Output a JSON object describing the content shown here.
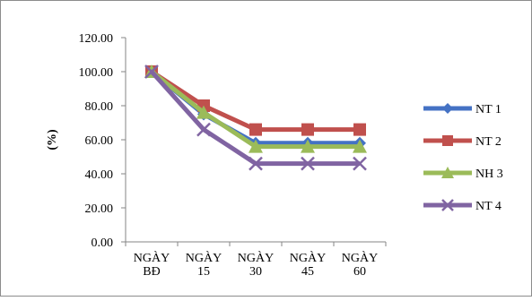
{
  "chart_data": {
    "type": "line",
    "title": "",
    "xlabel": "",
    "ylabel": "(%)",
    "ylim": [
      0,
      120
    ],
    "y_ticks": [
      "0.00",
      "20.00",
      "40.00",
      "60.00",
      "80.00",
      "100.00",
      "120.00"
    ],
    "y_tick_values": [
      0,
      20,
      40,
      60,
      80,
      100,
      120
    ],
    "grid": false,
    "legend_position": "right",
    "categories": [
      [
        "NGÀY",
        "BĐ"
      ],
      [
        "NGÀY",
        "15"
      ],
      [
        "NGÀY",
        "30"
      ],
      [
        "NGÀY",
        "45"
      ],
      [
        "NGÀY",
        "60"
      ]
    ],
    "series": [
      {
        "name": "NT 1",
        "color": "#4472C4",
        "marker": "diamond",
        "values": [
          100,
          75,
          58,
          58,
          58
        ]
      },
      {
        "name": "NT 2",
        "color": "#C0504D",
        "marker": "square",
        "values": [
          100,
          80,
          66,
          66,
          66
        ]
      },
      {
        "name": "NH 3",
        "color": "#9BBB59",
        "marker": "triangle",
        "values": [
          100,
          76,
          56,
          56,
          56
        ]
      },
      {
        "name": "NT 4",
        "color": "#8064A2",
        "marker": "x",
        "values": [
          100,
          66,
          46,
          46,
          46
        ]
      }
    ]
  }
}
